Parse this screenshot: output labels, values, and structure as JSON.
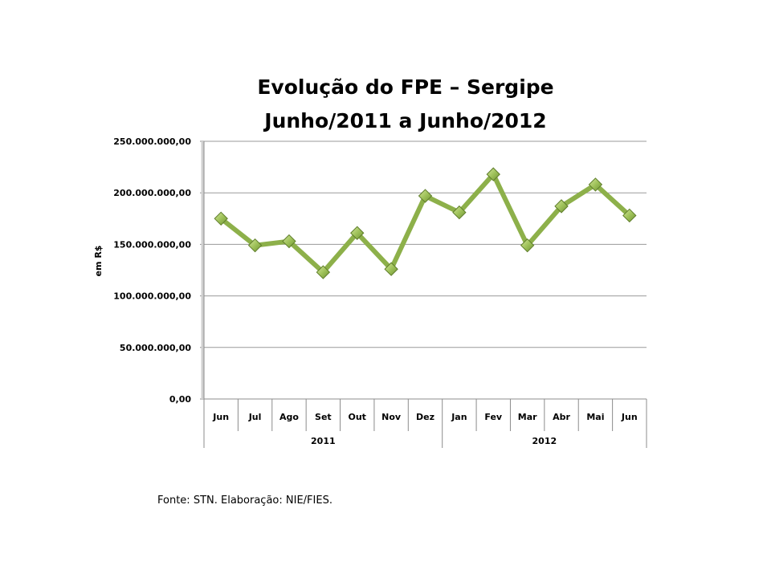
{
  "chart_data": {
    "type": "line",
    "title": [
      "Evolução do FPE – Sergipe",
      "Junho/2011 a Junho/2012"
    ],
    "ylabel": "em R$",
    "xlabel": "",
    "ylim": [
      0,
      250000000
    ],
    "yticks": [
      0,
      50000000,
      100000000,
      150000000,
      200000000,
      250000000
    ],
    "ytick_labels": [
      "0,00",
      "50.000.000,00",
      "100.000.000,00",
      "150.000.000,00",
      "200.000.000,00",
      "250.000.000,00"
    ],
    "categories": [
      "Jun",
      "Jul",
      "Ago",
      "Set",
      "Out",
      "Nov",
      "Dez",
      "Jan",
      "Fev",
      "Mar",
      "Abr",
      "Mai",
      "Jun"
    ],
    "groups": [
      {
        "label": "2011",
        "count": 7
      },
      {
        "label": "2012",
        "count": 6
      }
    ],
    "series": [
      {
        "values": [
          175000000,
          149000000,
          153000000,
          123000000,
          161000000,
          126000000,
          197000000,
          181000000,
          218000000,
          149000000,
          187000000,
          208000000,
          178000000
        ],
        "color": "#8db04a",
        "marker": "diamond"
      }
    ],
    "grid": true
  },
  "source_note": "Fonte: STN. Elaboração: NIE/FIES."
}
